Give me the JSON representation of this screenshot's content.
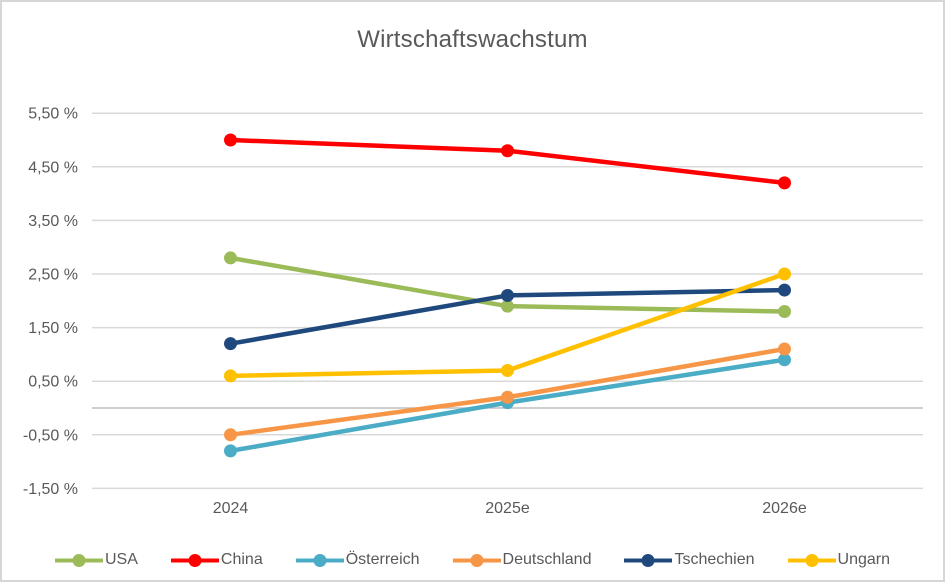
{
  "window": {
    "background": "#FFFFFF",
    "border_color": "#D6D6D6"
  },
  "style": {
    "title_color": "#595959",
    "axis_label_color": "#595959",
    "gridline_color": "#D9D9D9",
    "zero_line_color": "#BFBFBF"
  },
  "chart_data": {
    "type": "line",
    "title": "Wirtschaftswachstum",
    "categories": [
      "2024",
      "2025e",
      "2026e"
    ],
    "series": [
      {
        "name": "USA",
        "color": "#9BBB59",
        "values": [
          2.8,
          1.9,
          1.8
        ]
      },
      {
        "name": "China",
        "color": "#FF0000",
        "values": [
          5.0,
          4.8,
          4.2
        ]
      },
      {
        "name": "Österreich",
        "color": "#4BACC6",
        "values": [
          -0.8,
          0.1,
          0.9
        ]
      },
      {
        "name": "Deutschland",
        "color": "#F79646",
        "values": [
          -0.5,
          0.2,
          1.1
        ]
      },
      {
        "name": "Tschechien",
        "color": "#1F497D",
        "values": [
          1.2,
          2.1,
          2.2
        ]
      },
      {
        "name": "Ungarn",
        "color": "#FFC000",
        "values": [
          0.6,
          0.7,
          2.5
        ]
      }
    ],
    "y_ticks": [
      {
        "value": 5.5,
        "label": "5,50 %"
      },
      {
        "value": 4.5,
        "label": "4,50 %"
      },
      {
        "value": 3.5,
        "label": "3,50 %"
      },
      {
        "value": 2.5,
        "label": "2,50 %"
      },
      {
        "value": 1.5,
        "label": "1,50 %"
      },
      {
        "value": 0.5,
        "label": "0,50 %"
      },
      {
        "value": -0.5,
        "label": "-0,50 %"
      },
      {
        "value": -1.5,
        "label": "-1,50 %"
      }
    ],
    "ylim": [
      -1.5,
      5.5
    ],
    "unit": "percent",
    "grid": true,
    "zero_line": true,
    "legend_position": "bottom"
  }
}
